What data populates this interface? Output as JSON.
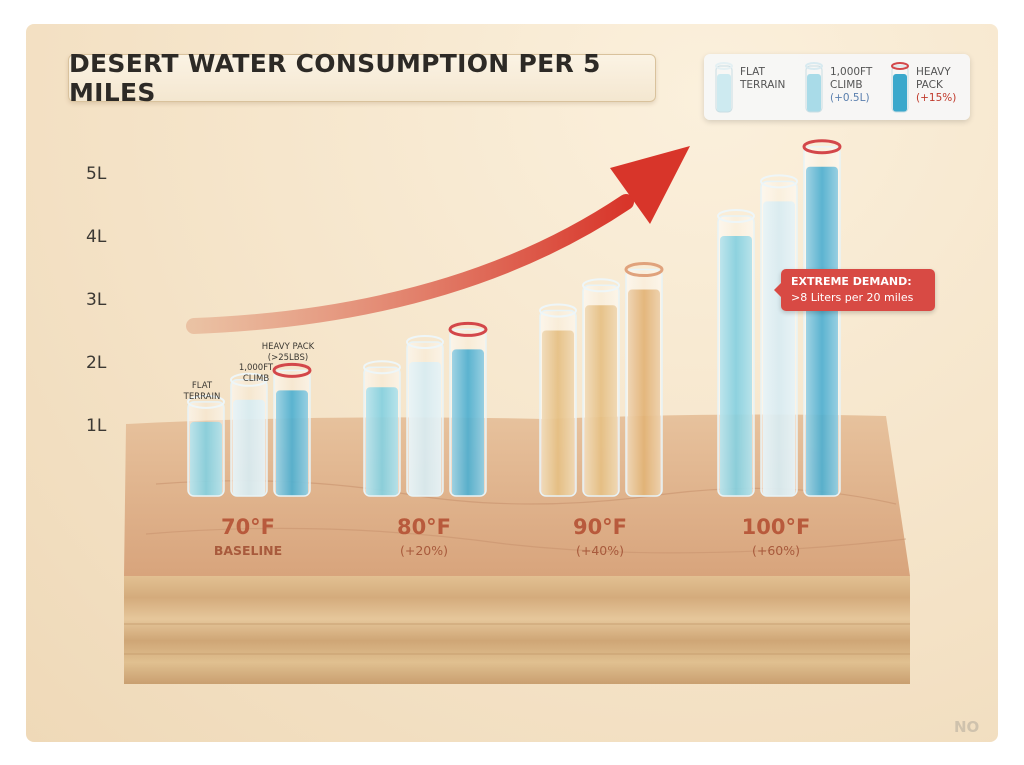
{
  "chart_data": {
    "type": "bar",
    "title": "DESERT WATER CONSUMPTION PER 5 MILES",
    "y_ticks": [
      "1L",
      "2L",
      "3L",
      "4L",
      "5L"
    ],
    "ylim": [
      0,
      5
    ],
    "categories": [
      {
        "temp": "70°F",
        "subtitle": "BASELINE"
      },
      {
        "temp": "80°F",
        "subtitle": "(+20%)"
      },
      {
        "temp": "90°F",
        "subtitle": "(+40%)"
      },
      {
        "temp": "100°F",
        "subtitle": "(+60%)"
      }
    ],
    "series": [
      {
        "name": "FLAT TERRAIN",
        "bar_label": "FLAT\nTERRAIN",
        "values": [
          1.05,
          1.6,
          2.5,
          4.0
        ]
      },
      {
        "name": "1,000FT CLIMB",
        "bar_label": "1,000FT\nCLIMB",
        "values": [
          1.4,
          2.0,
          2.9,
          4.55
        ]
      },
      {
        "name": "HEAVY PACK",
        "bar_label": "HEAVY PACK\n(>25LBS)",
        "values": [
          1.55,
          2.2,
          3.15,
          5.1
        ]
      }
    ],
    "legend": {
      "placement": "top-right",
      "entries": [
        {
          "label": "FLAT\nTERRAIN",
          "note": ""
        },
        {
          "label": "1,000FT\nCLIMB",
          "note": "(+0.5L)"
        },
        {
          "label": "HEAVY\nPACK",
          "note": "(+15%)"
        }
      ]
    },
    "annotation": {
      "title": "EXTREME DEMAND:",
      "text": ">8 Liters per 20 miles"
    },
    "trend_arrow": true,
    "grid": false
  },
  "colors": {
    "flat_water": "#6cc7d9",
    "climb_water": "#cfe8ef",
    "pack_water": "#2a9ec7",
    "hot_water_tint": "#e0b36a",
    "pack_rim": "#d3474a",
    "arrow_start": "#e8b99a",
    "arrow_end": "#d8352a",
    "terrain_top": "#e0b38e",
    "terrain_side": "#d8b485"
  },
  "watermark": "NO"
}
